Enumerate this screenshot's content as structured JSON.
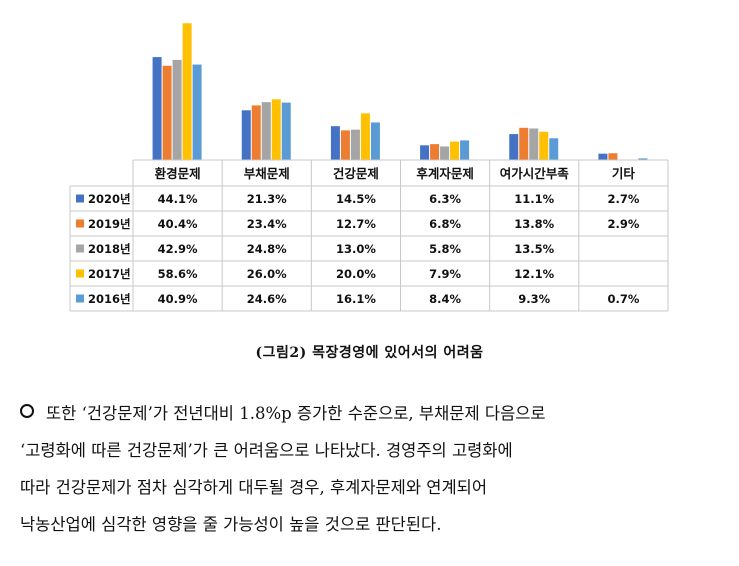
{
  "chart_data": {
    "type": "bar",
    "categories": [
      "환경문제",
      "부채문제",
      "건강문제",
      "후계자문제",
      "여가시간부족",
      "기타"
    ],
    "series": [
      {
        "name": "2020년",
        "color": "#4472C4",
        "values": [
          44.1,
          21.3,
          14.5,
          6.3,
          11.1,
          2.7
        ],
        "labels": [
          "44.1%",
          "21.3%",
          "14.5%",
          "6.3%",
          "11.1%",
          "2.7%"
        ]
      },
      {
        "name": "2019년",
        "color": "#ED7D31",
        "values": [
          40.4,
          23.4,
          12.7,
          6.8,
          13.8,
          2.9
        ],
        "labels": [
          "40.4%",
          "23.4%",
          "12.7%",
          "6.8%",
          "13.8%",
          "2.9%"
        ]
      },
      {
        "name": "2018년",
        "color": "#A5A5A5",
        "values": [
          42.9,
          24.8,
          13.0,
          5.8,
          13.5,
          null
        ],
        "labels": [
          "42.9%",
          "24.8%",
          "13.0%",
          "5.8%",
          "13.5%",
          ""
        ]
      },
      {
        "name": "2017년",
        "color": "#FFC000",
        "values": [
          58.6,
          26.0,
          20.0,
          7.9,
          12.1,
          null
        ],
        "labels": [
          "58.6%",
          "26.0%",
          "20.0%",
          "7.9%",
          "12.1%",
          ""
        ]
      },
      {
        "name": "2016년",
        "color": "#5B9BD5",
        "values": [
          40.9,
          24.6,
          16.1,
          8.4,
          9.3,
          0.7
        ],
        "labels": [
          "40.9%",
          "24.6%",
          "16.1%",
          "8.4%",
          "9.3%",
          "0.7%"
        ]
      }
    ],
    "ylim": [
      0,
      60
    ],
    "grid": false,
    "legend": "table-left"
  },
  "caption": "(그림2) 목장경영에 있어서의 어려움",
  "paragraph": {
    "lines": [
      "또한 ‘건강문제’가 전년대비 1.8%p 증가한 수준으로, 부채문제 다음으로",
      "‘고령화에 따른 건강문제’가 큰 어려움으로 나타났다. 경영주의 고령화에",
      "따라 건강문제가 점차 심각하게 대두될 경우, 후계자문제와 연계되어",
      "낙농산업에 심각한 영향을 줄 가능성이 높을 것으로 판단된다."
    ]
  }
}
